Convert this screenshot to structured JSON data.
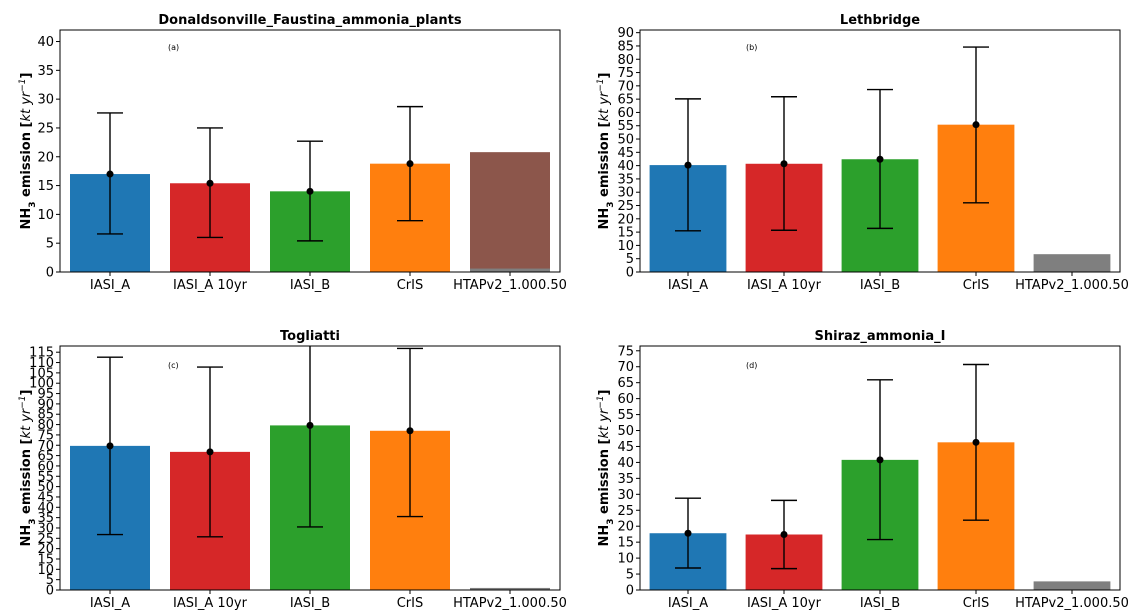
{
  "figure": {
    "ylabel_main": "NH",
    "ylabel_sub": "3",
    "ylabel_rest": " emission [",
    "ylabel_unit": "kt yr",
    "ylabel_exp": "−1",
    "ylabel_close": "]"
  },
  "chart_data": [
    {
      "type": "bar",
      "title": "Donaldsonville_Faustina_ammonia_plants",
      "panel_label": "(a)",
      "categories": [
        "IASI_A",
        "IASI_A 10yr",
        "IASI_B",
        "CrIS",
        "HTAPv2_1.000.50"
      ],
      "values": [
        17.0,
        15.4,
        14.0,
        18.8,
        20.8
      ],
      "overlay": {
        "category": "HTAPv2_1.000.50",
        "value": 0.6,
        "color": "#7f7f7f"
      },
      "error_low": [
        6.6,
        6.0,
        5.4,
        8.9,
        null
      ],
      "error_high": [
        27.6,
        25.0,
        22.7,
        28.7,
        null
      ],
      "colors": [
        "#1f77b4",
        "#d62728",
        "#2ca02c",
        "#ff7f0e",
        "#8c564b"
      ],
      "ylim": [
        0,
        42
      ],
      "yticks": [
        0,
        5,
        10,
        15,
        20,
        25,
        30,
        35,
        40
      ]
    },
    {
      "type": "bar",
      "title": "Lethbridge",
      "panel_label": "(b)",
      "categories": [
        "IASI_A",
        "IASI_A 10yr",
        "IASI_B",
        "CrIS",
        "HTAPv2_1.000.50"
      ],
      "values": [
        40.2,
        40.7,
        42.4,
        55.4,
        6.7
      ],
      "error_low": [
        15.5,
        15.7,
        16.4,
        26.0,
        null
      ],
      "error_high": [
        65.1,
        65.9,
        68.6,
        84.6,
        null
      ],
      "colors": [
        "#1f77b4",
        "#d62728",
        "#2ca02c",
        "#ff7f0e",
        "#7f7f7f"
      ],
      "ylim": [
        0,
        91
      ],
      "yticks": [
        0,
        5,
        10,
        15,
        20,
        25,
        30,
        35,
        40,
        45,
        50,
        55,
        60,
        65,
        70,
        75,
        80,
        85,
        90
      ]
    },
    {
      "type": "bar",
      "title": "Togliatti",
      "panel_label": "(c)",
      "categories": [
        "IASI_A",
        "IASI_A 10yr",
        "IASI_B",
        "CrIS",
        "HTAPv2_1.000.50"
      ],
      "values": [
        69.7,
        66.8,
        79.6,
        77.0,
        1.0
      ],
      "error_low": [
        26.8,
        25.7,
        30.5,
        35.5,
        null
      ],
      "error_high": [
        112.6,
        107.8,
        128.5,
        116.8,
        null
      ],
      "colors": [
        "#1f77b4",
        "#d62728",
        "#2ca02c",
        "#ff7f0e",
        "#7f7f7f"
      ],
      "ylim": [
        0,
        118
      ],
      "yticks": [
        0,
        5,
        10,
        15,
        20,
        25,
        30,
        35,
        40,
        45,
        50,
        55,
        60,
        65,
        70,
        75,
        80,
        85,
        90,
        95,
        100,
        105,
        110,
        115
      ]
    },
    {
      "type": "bar",
      "title": "Shiraz_ammonia_I",
      "panel_label": "(d)",
      "categories": [
        "IASI_A",
        "IASI_A 10yr",
        "IASI_B",
        "CrIS",
        "HTAPv2_1.000.50"
      ],
      "values": [
        17.8,
        17.4,
        40.8,
        46.3,
        2.7
      ],
      "error_low": [
        6.9,
        6.7,
        15.8,
        21.9,
        null
      ],
      "error_high": [
        28.8,
        28.1,
        65.9,
        70.7,
        null
      ],
      "colors": [
        "#1f77b4",
        "#d62728",
        "#2ca02c",
        "#ff7f0e",
        "#7f7f7f"
      ],
      "ylim": [
        0,
        76.5
      ],
      "yticks": [
        0,
        5,
        10,
        15,
        20,
        25,
        30,
        35,
        40,
        45,
        50,
        55,
        60,
        65,
        70,
        75
      ]
    }
  ]
}
